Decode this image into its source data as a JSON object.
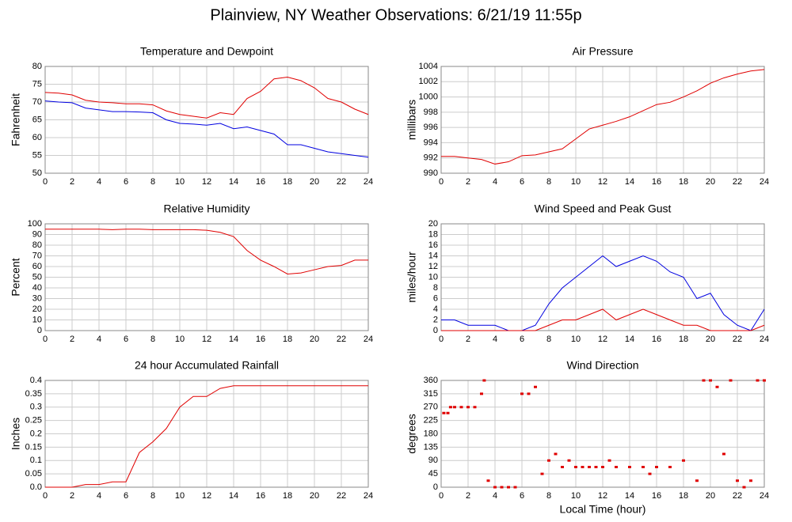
{
  "title": "Plainview, NY Weather Observations: 6/21/19 11:55p",
  "chart_data": [
    {
      "type": "line",
      "title": "Temperature and Dewpoint",
      "ylabel": "Fahrenheit",
      "x": [
        0,
        1,
        2,
        3,
        4,
        5,
        6,
        7,
        8,
        9,
        10,
        11,
        12,
        13,
        14,
        15,
        16,
        17,
        18,
        19,
        20,
        21,
        22,
        23,
        24
      ],
      "series": [
        {
          "color": "#e00000",
          "values": [
            72.7,
            72.5,
            72,
            70.5,
            70,
            69.8,
            69.5,
            69.5,
            69.2,
            67.5,
            66.5,
            66,
            65.5,
            67,
            66.5,
            71,
            73,
            76.5,
            77,
            76,
            74,
            71,
            70,
            68,
            66.5
          ]
        },
        {
          "color": "#0000e0",
          "values": [
            70.3,
            70,
            69.8,
            68.3,
            67.8,
            67.3,
            67.3,
            67.2,
            67,
            65,
            64,
            63.8,
            63.5,
            64,
            62.5,
            63,
            62,
            61,
            58,
            58,
            57,
            56,
            55.5,
            55,
            54.5
          ]
        }
      ],
      "xlim": [
        0,
        24
      ],
      "xticks": [
        0,
        2,
        4,
        6,
        8,
        10,
        12,
        14,
        16,
        18,
        20,
        22,
        24
      ],
      "ylim": [
        50,
        80
      ],
      "yticks": [
        50,
        55,
        60,
        65,
        70,
        75,
        80
      ],
      "grid": true
    },
    {
      "type": "line",
      "title": "Air Pressure",
      "ylabel": "millibars",
      "x": [
        0,
        1,
        2,
        3,
        4,
        5,
        6,
        7,
        8,
        9,
        10,
        11,
        12,
        13,
        14,
        15,
        16,
        17,
        18,
        19,
        20,
        21,
        22,
        23,
        24
      ],
      "series": [
        {
          "color": "#e00000",
          "values": [
            992.2,
            992.2,
            992,
            991.8,
            991.2,
            991.5,
            992.3,
            992.4,
            992.8,
            993.2,
            994.5,
            995.8,
            996.3,
            996.8,
            997.4,
            998.2,
            999,
            999.3,
            1000,
            1000.8,
            1001.8,
            1002.5,
            1003,
            1003.4,
            1003.6
          ]
        }
      ],
      "xlim": [
        0,
        24
      ],
      "xticks": [
        0,
        2,
        4,
        6,
        8,
        10,
        12,
        14,
        16,
        18,
        20,
        22,
        24
      ],
      "ylim": [
        990,
        1004
      ],
      "yticks": [
        990,
        992,
        994,
        996,
        998,
        1000,
        1002,
        1004
      ],
      "grid": true
    },
    {
      "type": "line",
      "title": "Relative Humidity",
      "ylabel": "Percent",
      "x": [
        0,
        1,
        2,
        3,
        4,
        5,
        6,
        7,
        8,
        9,
        10,
        11,
        12,
        13,
        14,
        15,
        16,
        17,
        18,
        19,
        20,
        21,
        22,
        23,
        24
      ],
      "series": [
        {
          "color": "#e00000",
          "values": [
            95,
            95,
            95,
            95,
            95,
            94.5,
            95,
            95,
            94.5,
            94.5,
            94.5,
            94.5,
            94,
            92,
            88,
            75,
            66,
            60,
            53,
            54,
            57,
            60,
            61,
            66,
            66
          ]
        }
      ],
      "xlim": [
        0,
        24
      ],
      "xticks": [
        0,
        2,
        4,
        6,
        8,
        10,
        12,
        14,
        16,
        18,
        20,
        22,
        24
      ],
      "ylim": [
        0,
        100
      ],
      "yticks": [
        0,
        10,
        20,
        30,
        40,
        50,
        60,
        70,
        80,
        90,
        100
      ],
      "grid": true
    },
    {
      "type": "line",
      "title": "Wind Speed and Peak Gust",
      "ylabel": "miles/hour",
      "x": [
        0,
        1,
        2,
        3,
        4,
        5,
        6,
        7,
        8,
        9,
        10,
        11,
        12,
        13,
        14,
        15,
        16,
        17,
        18,
        19,
        20,
        21,
        22,
        23,
        24
      ],
      "series": [
        {
          "color": "#0000e0",
          "values": [
            2,
            2,
            1,
            1,
            1,
            0,
            0,
            1,
            5,
            8,
            10,
            12,
            14,
            12,
            13,
            14,
            13,
            11,
            10,
            6,
            7,
            3,
            1,
            0,
            4
          ]
        },
        {
          "color": "#e00000",
          "values": [
            0,
            0,
            0,
            0,
            0,
            0,
            0,
            0,
            1,
            2,
            2,
            3,
            4,
            2,
            3,
            4,
            3,
            2,
            1,
            1,
            0,
            0,
            0,
            0,
            1
          ]
        }
      ],
      "xlim": [
        0,
        24
      ],
      "xticks": [
        0,
        2,
        4,
        6,
        8,
        10,
        12,
        14,
        16,
        18,
        20,
        22,
        24
      ],
      "ylim": [
        0,
        20
      ],
      "yticks": [
        0,
        2,
        4,
        6,
        8,
        10,
        12,
        14,
        16,
        18,
        20
      ],
      "grid": true
    },
    {
      "type": "line",
      "title": "24 hour Accumulated Rainfall",
      "ylabel": "Inches",
      "x": [
        0,
        1,
        2,
        3,
        4,
        5,
        6,
        7,
        8,
        9,
        10,
        11,
        12,
        13,
        14,
        15,
        16,
        17,
        18,
        19,
        20,
        21,
        22,
        23,
        24
      ],
      "series": [
        {
          "color": "#e00000",
          "values": [
            0,
            0,
            0,
            0.01,
            0.01,
            0.02,
            0.02,
            0.13,
            0.17,
            0.22,
            0.3,
            0.34,
            0.34,
            0.37,
            0.38,
            0.38,
            0.38,
            0.38,
            0.38,
            0.38,
            0.38,
            0.38,
            0.38,
            0.38,
            0.38
          ]
        }
      ],
      "xlim": [
        0,
        24
      ],
      "xticks": [
        0,
        2,
        4,
        6,
        8,
        10,
        12,
        14,
        16,
        18,
        20,
        22,
        24
      ],
      "ylim": [
        0,
        0.4
      ],
      "yticks": [
        {
          "value": 0,
          "label": "0.0"
        },
        0.05,
        0.1,
        0.15,
        0.2,
        0.25,
        0.3,
        0.35,
        0.4
      ],
      "grid": true
    },
    {
      "type": "scatter",
      "title": "Wind Direction",
      "ylabel": "degrees",
      "xlabel": "Local Time (hour)",
      "series": [
        {
          "color": "#e00000",
          "x": [
            0.2,
            0.5,
            0.7,
            1,
            1.5,
            2,
            2.5,
            3,
            3.2,
            3.5,
            4,
            4.5,
            5,
            5.5,
            6,
            6.5,
            7,
            7.5,
            8,
            8.5,
            9,
            9.5,
            10,
            10.5,
            11,
            11.5,
            12,
            12.5,
            13,
            14,
            15,
            15.5,
            16,
            17,
            18,
            19,
            19.5,
            20,
            20.5,
            21,
            21.5,
            22,
            22.5,
            23,
            23.5,
            24
          ],
          "values": [
            250,
            250,
            270,
            270,
            270,
            270,
            270,
            315,
            360,
            22,
            0,
            0,
            0,
            0,
            315,
            315,
            338,
            45,
            90,
            112,
            68,
            90,
            68,
            68,
            68,
            68,
            68,
            90,
            68,
            68,
            68,
            45,
            68,
            68,
            90,
            22,
            360,
            360,
            338,
            112,
            360,
            22,
            0,
            22,
            360,
            360
          ]
        }
      ],
      "xlim": [
        0,
        24
      ],
      "xticks": [
        0,
        2,
        4,
        6,
        8,
        10,
        12,
        14,
        16,
        18,
        20,
        22,
        24
      ],
      "ylim": [
        0,
        360
      ],
      "yticks": [
        0,
        45,
        90,
        135,
        180,
        225,
        270,
        315,
        360
      ],
      "grid": true
    }
  ]
}
